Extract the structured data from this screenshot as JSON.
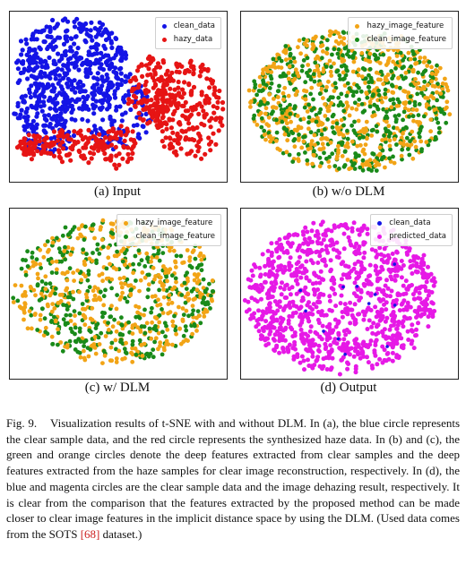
{
  "figure": {
    "panels": [
      {
        "id": "a",
        "caption": "(a) Input",
        "legend": [
          "clean_data",
          "hazy_data"
        ],
        "colors": [
          "#1414e6",
          "#e61414"
        ]
      },
      {
        "id": "b",
        "caption": "(b) w/o DLM",
        "legend": [
          "hazy_image_feature",
          "clean_image_feature"
        ],
        "colors": [
          "#f2a416",
          "#198a19"
        ]
      },
      {
        "id": "c",
        "caption": "(c) w/ DLM",
        "legend": [
          "hazy_image_feature",
          "clean_image_feature"
        ],
        "colors": [
          "#f2a416",
          "#198a19"
        ]
      },
      {
        "id": "d",
        "caption": "(d) Output",
        "legend": [
          "clean_data",
          "predicted_data"
        ],
        "colors": [
          "#1414e6",
          "#e619e6"
        ]
      }
    ],
    "caption_label": "Fig. 9.",
    "caption_text": "Visualization results of t-SNE with and without DLM. In (a), the blue circle represents the clear sample data, and the red circle represents the synthesized haze data. In (b) and (c), the green and orange circles denote the deep features extracted from clear samples and the deep features extracted from the haze samples for clear image reconstruction, respectively. In (d), the blue and magenta circles are the clear sample data and the image dehazing result, respectively. It is clear from the comparison that the features extracted by the proposed method can be made closer to clear image features in the implicit distance space by using the DLM. (Used data comes from the SOTS",
    "caption_ref": "[68]",
    "caption_end": " dataset.)"
  }
}
